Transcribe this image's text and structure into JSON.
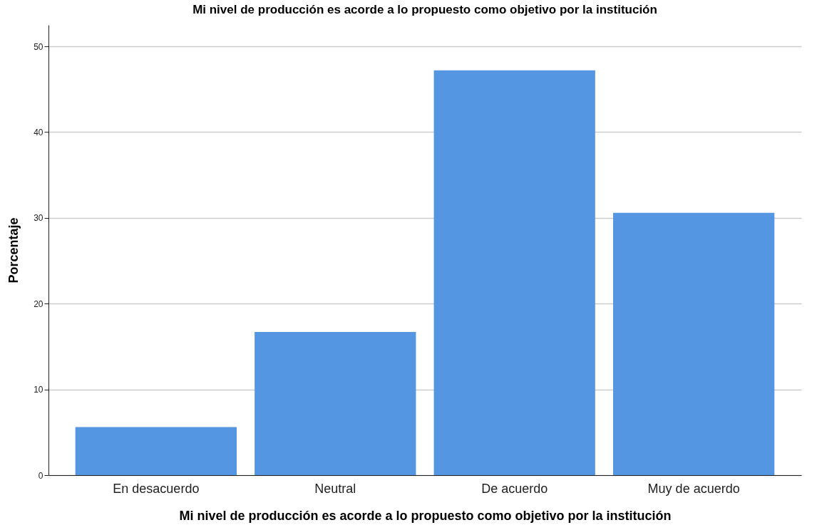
{
  "chart_data": {
    "type": "bar",
    "title": "Mi nivel de producción es acorde a lo propuesto como objetivo por la institución",
    "xlabel": "Mi nivel de producción es acorde a lo propuesto como objetivo por la institución",
    "ylabel": "Porcentaje",
    "categories": [
      "En desacuerdo",
      "Neutral",
      "De acuerdo",
      "Muy de acuerdo"
    ],
    "values": [
      5.6,
      16.7,
      47.2,
      30.6
    ],
    "color": "#5596e3",
    "ylim": [
      0,
      52.5
    ],
    "yticks": [
      0,
      10,
      20,
      30,
      40,
      50
    ],
    "grid": "y"
  }
}
